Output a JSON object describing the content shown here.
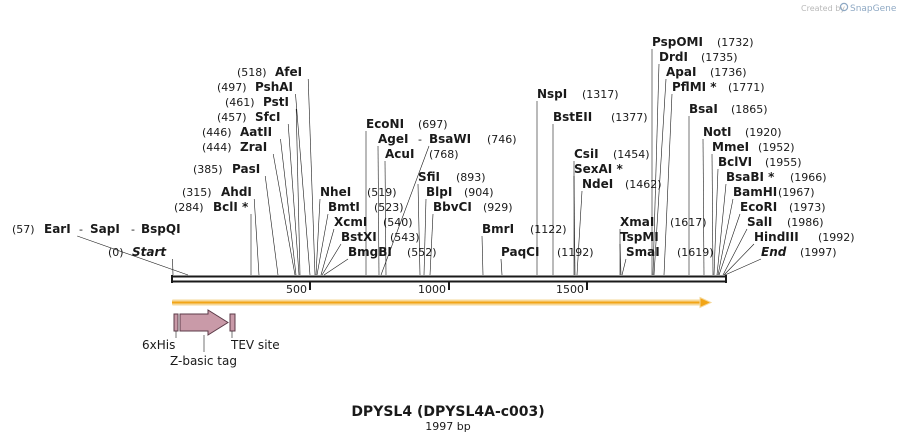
{
  "branding": {
    "created_by": "Created by",
    "app": "SnapGene"
  },
  "map": {
    "title": "DPYSL4 (DPYSL4A-c003)",
    "length_label": "1997 bp",
    "sequence_length": 1997
  },
  "sites": [
    {
      "id": "start",
      "name": "Start",
      "pos_label": "(0)",
      "italic": true
    },
    {
      "id": "earI",
      "name": "EarI",
      "pos_label": "(57)"
    },
    {
      "id": "sapI",
      "name": "SapI"
    },
    {
      "id": "bspQI",
      "name": "BspQI"
    },
    {
      "id": "bclI",
      "name": "BclI *",
      "pos_label": "(284)"
    },
    {
      "id": "ahdI",
      "name": "AhdI",
      "pos_label": "(315)"
    },
    {
      "id": "pasI",
      "name": "PasI",
      "pos_label": "(385)"
    },
    {
      "id": "zraI",
      "name": "ZraI",
      "pos_label": "(444)"
    },
    {
      "id": "aatII",
      "name": "AatII",
      "pos_label": "(446)"
    },
    {
      "id": "sfcI",
      "name": "SfcI",
      "pos_label": "(457)"
    },
    {
      "id": "pstI",
      "name": "PstI",
      "pos_label": "(461)"
    },
    {
      "id": "pshAI",
      "name": "PshAI",
      "pos_label": "(497)"
    },
    {
      "id": "afeI",
      "name": "AfeI",
      "pos_label": "(518)"
    },
    {
      "id": "nheI",
      "name": "NheI",
      "pos_label": "(519)"
    },
    {
      "id": "bmtI",
      "name": "BmtI",
      "pos_label": "(523)"
    },
    {
      "id": "xcmI",
      "name": "XcmI",
      "pos_label": "(540)"
    },
    {
      "id": "bstXI",
      "name": "BstXI",
      "pos_label": "(543)"
    },
    {
      "id": "bmgBI",
      "name": "BmgBI",
      "pos_label": "(552)"
    },
    {
      "id": "ecoNI",
      "name": "EcoNI",
      "pos_label": "(697)"
    },
    {
      "id": "ageI",
      "name": "AgeI"
    },
    {
      "id": "bsaWI",
      "name": "BsaWI",
      "pos_label": "(746)"
    },
    {
      "id": "acuI",
      "name": "AcuI",
      "pos_label": "(768)"
    },
    {
      "id": "sfiI",
      "name": "SfiI",
      "pos_label": "(893)"
    },
    {
      "id": "blpI",
      "name": "BlpI",
      "pos_label": "(904)"
    },
    {
      "id": "bbvCI",
      "name": "BbvCI",
      "pos_label": "(929)"
    },
    {
      "id": "bmrI",
      "name": "BmrI",
      "pos_label": "(1122)"
    },
    {
      "id": "paqCI",
      "name": "PaqCI",
      "pos_label": "(1192)"
    },
    {
      "id": "nspI",
      "name": "NspI",
      "pos_label": "(1317)"
    },
    {
      "id": "bstEII",
      "name": "BstEII",
      "pos_label": "(1377)"
    },
    {
      "id": "csiI",
      "name": "CsiI",
      "pos_label": "(1454)"
    },
    {
      "id": "sexAI",
      "name": "SexAI *"
    },
    {
      "id": "ndeI",
      "name": "NdeI",
      "pos_label": "(1462)"
    },
    {
      "id": "xmaI",
      "name": "XmaI",
      "pos_label": "(1617)"
    },
    {
      "id": "tspMI",
      "name": "TspMI"
    },
    {
      "id": "smaI",
      "name": "SmaI",
      "pos_label": "(1619)"
    },
    {
      "id": "pspOMI",
      "name": "PspOMI",
      "pos_label": "(1732)"
    },
    {
      "id": "drdI",
      "name": "DrdI",
      "pos_label": "(1735)"
    },
    {
      "id": "apaI",
      "name": "ApaI",
      "pos_label": "(1736)"
    },
    {
      "id": "pflMI",
      "name": "PflMI *",
      "pos_label": "(1771)"
    },
    {
      "id": "bsaI",
      "name": "BsaI",
      "pos_label": "(1865)"
    },
    {
      "id": "notI",
      "name": "NotI",
      "pos_label": "(1920)"
    },
    {
      "id": "mmeI",
      "name": "MmeI",
      "pos_label": "(1952)"
    },
    {
      "id": "bclVI",
      "name": "BclVI",
      "pos_label": "(1955)"
    },
    {
      "id": "bsaBI",
      "name": "BsaBI *",
      "pos_label": "(1966)"
    },
    {
      "id": "bamHI",
      "name": "BamHI",
      "pos_label": "(1967)"
    },
    {
      "id": "ecoRI",
      "name": "EcoRI",
      "pos_label": "(1973)"
    },
    {
      "id": "salI",
      "name": "SalI",
      "pos_label": "(1986)"
    },
    {
      "id": "hindIII",
      "name": "HindIII",
      "pos_label": "(1992)"
    },
    {
      "id": "end",
      "name": "End",
      "pos_label": "(1997)",
      "italic": true
    }
  ],
  "ruler": {
    "ticks": [
      {
        "label": "500"
      },
      {
        "label": "1000"
      },
      {
        "label": "1500"
      }
    ]
  },
  "features": [
    {
      "id": "his",
      "label": "6xHis"
    },
    {
      "id": "zbasic",
      "label": "Z-basic tag"
    },
    {
      "id": "tev",
      "label": "TEV site"
    }
  ],
  "colors": {
    "orf_fill": "#f2a516",
    "orf_outline": "#f6d89a",
    "feature_fill": "#c99aa8",
    "feature_stroke": "#5c3b48",
    "backbone": "#1a1a1a"
  }
}
